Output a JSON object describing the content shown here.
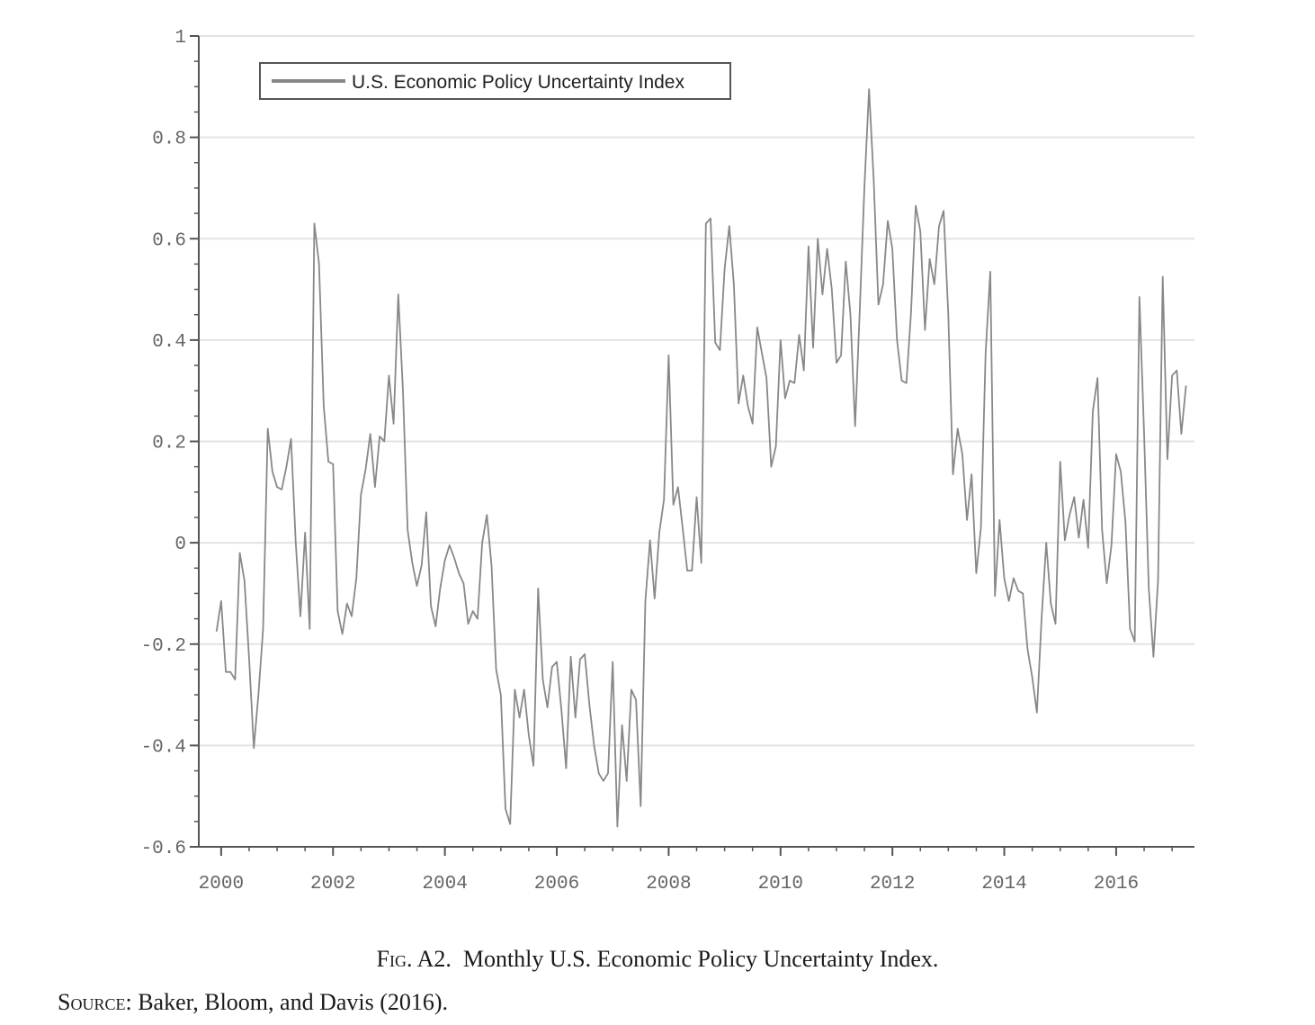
{
  "chart_data": {
    "type": "line",
    "title": "",
    "xlabel": "",
    "ylabel": "",
    "xlim": [
      1999.6,
      2017.4
    ],
    "ylim": [
      -0.6,
      1
    ],
    "y_ticks": [
      1,
      0.8,
      0.6,
      0.4,
      0.2,
      0,
      -0.2,
      -0.4,
      -0.6
    ],
    "y_tick_labels": [
      "1",
      "0.8",
      "0.6",
      "0.4",
      "0.2",
      "0",
      "-0.2",
      "-0.4",
      "-0.6"
    ],
    "x_ticks": [
      2000,
      2002,
      2004,
      2006,
      2008,
      2010,
      2012,
      2014,
      2016
    ],
    "x_tick_labels": [
      "2000",
      "2002",
      "2004",
      "2006",
      "2008",
      "2010",
      "2012",
      "2014",
      "2016"
    ],
    "grid": "horizontal",
    "legend_position": "top-left",
    "line_color": "#888888",
    "series": [
      {
        "name": "U.S. Economic Policy Uncertainty Index",
        "x_start": 1999.9167,
        "x_step": 0.08333,
        "values": [
          -0.175,
          -0.115,
          -0.255,
          -0.255,
          -0.27,
          -0.02,
          -0.075,
          -0.23,
          -0.405,
          -0.3,
          -0.17,
          0.225,
          0.14,
          0.11,
          0.105,
          0.15,
          0.205,
          0.0,
          -0.145,
          0.02,
          -0.17,
          0.63,
          0.55,
          0.27,
          0.16,
          0.155,
          -0.135,
          -0.18,
          -0.12,
          -0.145,
          -0.07,
          0.095,
          0.145,
          0.215,
          0.11,
          0.21,
          0.2,
          0.33,
          0.235,
          0.49,
          0.3,
          0.025,
          -0.04,
          -0.085,
          -0.045,
          0.06,
          -0.125,
          -0.165,
          -0.09,
          -0.035,
          -0.005,
          -0.03,
          -0.06,
          -0.08,
          -0.16,
          -0.135,
          -0.15,
          0.0,
          0.055,
          -0.045,
          -0.25,
          -0.3,
          -0.525,
          -0.555,
          -0.29,
          -0.345,
          -0.29,
          -0.38,
          -0.44,
          -0.09,
          -0.27,
          -0.325,
          -0.245,
          -0.235,
          -0.33,
          -0.445,
          -0.225,
          -0.345,
          -0.23,
          -0.22,
          -0.32,
          -0.4,
          -0.455,
          -0.47,
          -0.455,
          -0.235,
          -0.56,
          -0.36,
          -0.47,
          -0.29,
          -0.31,
          -0.52,
          -0.115,
          0.005,
          -0.11,
          0.02,
          0.085,
          0.37,
          0.075,
          0.11,
          0.03,
          -0.055,
          -0.055,
          0.09,
          -0.04,
          0.63,
          0.64,
          0.395,
          0.38,
          0.54,
          0.625,
          0.51,
          0.275,
          0.33,
          0.27,
          0.235,
          0.425,
          0.375,
          0.325,
          0.15,
          0.19,
          0.4,
          0.285,
          0.32,
          0.315,
          0.41,
          0.34,
          0.585,
          0.385,
          0.6,
          0.49,
          0.58,
          0.5,
          0.355,
          0.37,
          0.555,
          0.45,
          0.23,
          0.46,
          0.7,
          0.895,
          0.715,
          0.47,
          0.51,
          0.635,
          0.58,
          0.4,
          0.32,
          0.315,
          0.455,
          0.665,
          0.615,
          0.42,
          0.56,
          0.51,
          0.625,
          0.655,
          0.45,
          0.135,
          0.225,
          0.175,
          0.045,
          0.135,
          -0.06,
          0.03,
          0.375,
          0.535,
          -0.105,
          0.045,
          -0.07,
          -0.115,
          -0.07,
          -0.095,
          -0.1,
          -0.21,
          -0.265,
          -0.335,
          -0.15,
          0.0,
          -0.12,
          -0.16,
          0.16,
          0.005,
          0.055,
          0.09,
          0.01,
          0.085,
          -0.01,
          0.26,
          0.325,
          0.025,
          -0.08,
          -0.005,
          0.175,
          0.14,
          0.04,
          -0.17,
          -0.195,
          0.485,
          0.215,
          -0.09,
          -0.225,
          -0.075,
          0.525,
          0.165,
          0.33,
          0.34,
          0.215,
          0.31
        ]
      }
    ]
  },
  "caption": {
    "label": "Fig. A2.",
    "text": "Monthly U.S. Economic Policy Uncertainty Index."
  },
  "source": {
    "label": "Source:",
    "text": "Baker, Bloom, and Davis (2016)."
  }
}
